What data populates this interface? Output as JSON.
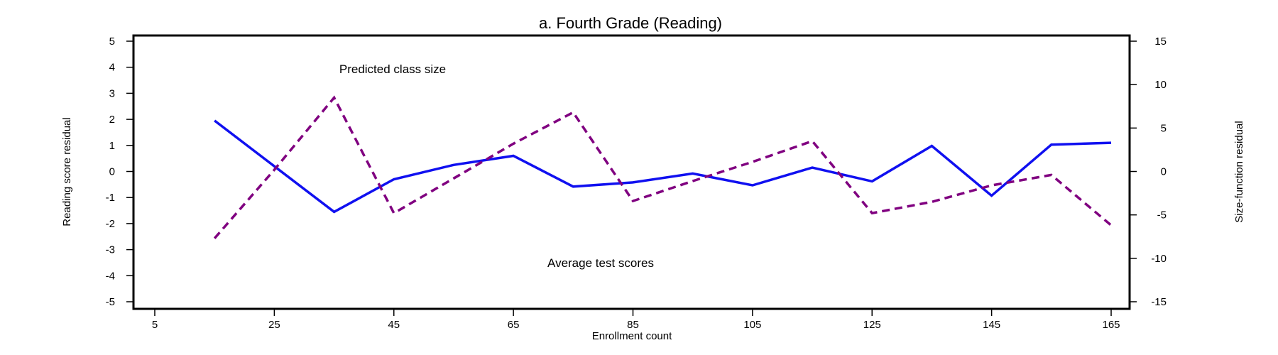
{
  "chart_data": {
    "type": "line",
    "title": "a. Fourth Grade (Reading)",
    "xlabel": "Enrollment count",
    "ylabel_left": "Reading score residual",
    "ylabel_right": "Size-function residual",
    "xlim": [
      5,
      165
    ],
    "ylim_left": [
      -5,
      5
    ],
    "ylim_right": [
      -15,
      15
    ],
    "xticks": [
      5,
      25,
      45,
      65,
      85,
      105,
      125,
      145,
      165
    ],
    "yticks_left": [
      5,
      4,
      3,
      2,
      1,
      0,
      -1,
      -2,
      -3,
      -4,
      -5
    ],
    "yticks_right": [
      15,
      10,
      5,
      0,
      -5,
      -10,
      -15
    ],
    "grid": false,
    "x": [
      15,
      25,
      35,
      45,
      55,
      65,
      75,
      85,
      95,
      105,
      115,
      125,
      135,
      145,
      155,
      165
    ],
    "series": [
      {
        "axis": "left",
        "color": "#1010f0",
        "dash": "solid",
        "values": [
          1.95,
          0.2,
          -1.55,
          -0.3,
          0.25,
          0.6,
          -0.58,
          -0.42,
          -0.08,
          -0.53,
          0.15,
          -0.38,
          0.98,
          -0.93,
          1.03,
          1.1
        ]
      },
      {
        "axis": "right",
        "color": "#800080",
        "dash": "dashed",
        "values": [
          -7.7,
          0.2,
          8.5,
          -4.8,
          -0.8,
          3.2,
          6.8,
          -3.4,
          -1.1,
          1.1,
          3.5,
          -4.8,
          -3.5,
          -1.6,
          -0.4,
          -6.2
        ]
      }
    ],
    "annotations": [
      {
        "text": "Predicted class size",
        "color": "#800080"
      },
      {
        "text": "Average test scores",
        "color": "#1010f0"
      }
    ]
  }
}
